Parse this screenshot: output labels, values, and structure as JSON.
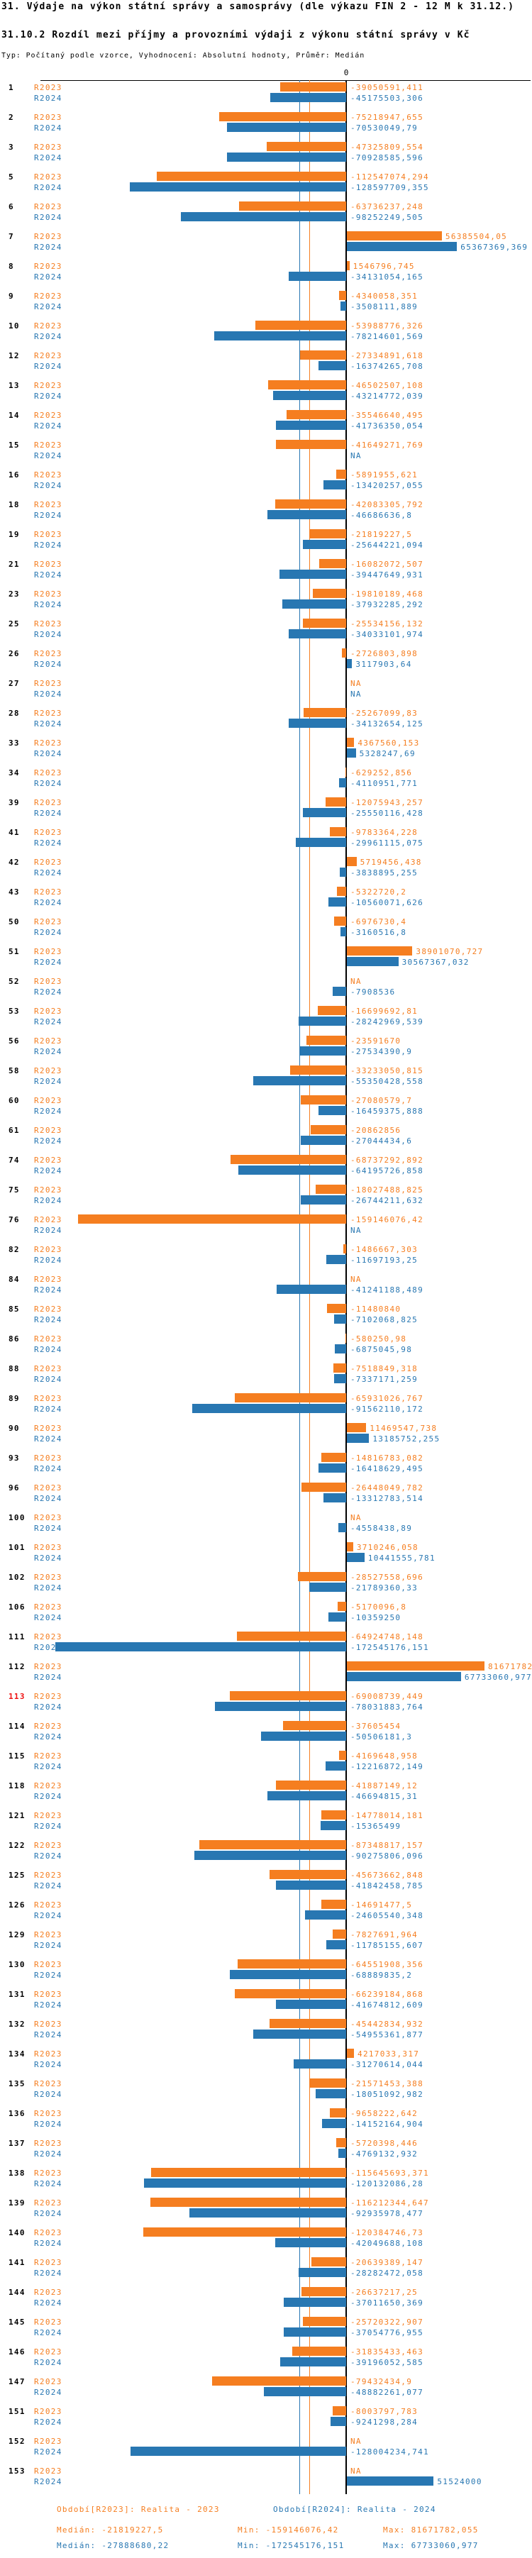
{
  "header": {
    "title": "31. Výdaje na výkon státní správy a samosprávy (dle výkazu FIN 2 - 12 M k 31.12.)",
    "subtitle": "31.10.2 Rozdíl mezi příjmy a provozními výdaji z výkonu státní správy v Kč",
    "meta": "Typ: Počítaný podle vzorce, Vyhodnocení: Absolutní hodnoty, Průměr: Medián"
  },
  "chart_data": {
    "type": "bar",
    "orientation": "horizontal-diverging",
    "zero_tick_label": "0",
    "na_label": "NA",
    "series_labels": {
      "s2023": "R2023",
      "s2024": "R2024"
    },
    "colors": {
      "r2023": "#f57e20",
      "r2024": "#2877b2",
      "highlight_id": "#ee1111",
      "axis": "#000000"
    },
    "highlighted_id": "113",
    "medians": {
      "r2023": -21819227.5,
      "r2024": -27888680.22
    },
    "axis_range": [
      -182000000,
      110000000
    ],
    "rows": [
      {
        "id": "1",
        "v2023": "-39050591,411",
        "v2024": "-45175503,306"
      },
      {
        "id": "2",
        "v2023": "-75218947,655",
        "v2024": "-70530049,79"
      },
      {
        "id": "3",
        "v2023": "-47325809,554",
        "v2024": "-70928585,596"
      },
      {
        "id": "5",
        "v2023": "-112547074,294",
        "v2024": "-128597709,355"
      },
      {
        "id": "6",
        "v2023": "-63736237,248",
        "v2024": "-98252249,505"
      },
      {
        "id": "7",
        "v2023": "56385504,05",
        "v2024": "65367369,369"
      },
      {
        "id": "8",
        "v2023": "1546796,745",
        "v2024": "-34131054,165"
      },
      {
        "id": "9",
        "v2023": "-4340058,351",
        "v2024": "-3508111,889"
      },
      {
        "id": "10",
        "v2023": "-53988776,326",
        "v2024": "-78214601,569"
      },
      {
        "id": "12",
        "v2023": "-27334891,618",
        "v2024": "-16374265,708"
      },
      {
        "id": "13",
        "v2023": "-46502507,108",
        "v2024": "-43214772,039"
      },
      {
        "id": "14",
        "v2023": "-35546640,495",
        "v2024": "-41736350,054"
      },
      {
        "id": "15",
        "v2023": "-41649271,769",
        "v2024": "NA"
      },
      {
        "id": "16",
        "v2023": "-5891955,621",
        "v2024": "-13420257,055"
      },
      {
        "id": "18",
        "v2023": "-42083305,792",
        "v2024": "-46686636,8"
      },
      {
        "id": "19",
        "v2023": "-21819227,5",
        "v2024": "-25644221,094"
      },
      {
        "id": "21",
        "v2023": "-16082072,507",
        "v2024": "-39447649,931"
      },
      {
        "id": "23",
        "v2023": "-19810189,468",
        "v2024": "-37932285,292"
      },
      {
        "id": "25",
        "v2023": "-25534156,132",
        "v2024": "-34033101,974"
      },
      {
        "id": "26",
        "v2023": "-2726803,898",
        "v2024": "3117903,64"
      },
      {
        "id": "27",
        "v2023": "NA",
        "v2024": "NA"
      },
      {
        "id": "28",
        "v2023": "-25267099,83",
        "v2024": "-34132654,125"
      },
      {
        "id": "33",
        "v2023": "4367560,153",
        "v2024": "5328247,69"
      },
      {
        "id": "34",
        "v2023": "-629252,856",
        "v2024": "-4110951,771"
      },
      {
        "id": "39",
        "v2023": "-12075943,257",
        "v2024": "-25550116,428"
      },
      {
        "id": "41",
        "v2023": "-9783364,228",
        "v2024": "-29961115,075"
      },
      {
        "id": "42",
        "v2023": "5719456,438",
        "v2024": "-3838895,255"
      },
      {
        "id": "43",
        "v2023": "-5322720,2",
        "v2024": "-10560071,626"
      },
      {
        "id": "50",
        "v2023": "-6976730,4",
        "v2024": "-3160516,8"
      },
      {
        "id": "51",
        "v2023": "38901070,727",
        "v2024": "30567367,032"
      },
      {
        "id": "52",
        "v2023": "NA",
        "v2024": "-7908536"
      },
      {
        "id": "53",
        "v2023": "-16699692,81",
        "v2024": "-28242969,539"
      },
      {
        "id": "56",
        "v2023": "-23591670",
        "v2024": "-27534390,9"
      },
      {
        "id": "58",
        "v2023": "-33233050,815",
        "v2024": "-55350428,558"
      },
      {
        "id": "60",
        "v2023": "-27080579,7",
        "v2024": "-16459375,888"
      },
      {
        "id": "61",
        "v2023": "-20862856",
        "v2024": "-27044434,6"
      },
      {
        "id": "74",
        "v2023": "-68737292,892",
        "v2024": "-64195726,858"
      },
      {
        "id": "75",
        "v2023": "-18027488,825",
        "v2024": "-26744211,632"
      },
      {
        "id": "76",
        "v2023": "-159146076,42",
        "v2024": "NA"
      },
      {
        "id": "82",
        "v2023": "-1486667,303",
        "v2024": "-11697193,25"
      },
      {
        "id": "84",
        "v2023": "NA",
        "v2024": "-41241188,489"
      },
      {
        "id": "85",
        "v2023": "-11480840",
        "v2024": "-7102068,825"
      },
      {
        "id": "86",
        "v2023": "-580250,98",
        "v2024": "-6875045,98"
      },
      {
        "id": "88",
        "v2023": "-7518849,318",
        "v2024": "-7337171,259"
      },
      {
        "id": "89",
        "v2023": "-65931026,767",
        "v2024": "-91562110,172"
      },
      {
        "id": "90",
        "v2023": "11469547,738",
        "v2024": "13185752,255"
      },
      {
        "id": "93",
        "v2023": "-14816783,082",
        "v2024": "-16418629,495"
      },
      {
        "id": "96",
        "v2023": "-26448049,782",
        "v2024": "-13312783,514"
      },
      {
        "id": "100",
        "v2023": "NA",
        "v2024": "-4558438,89"
      },
      {
        "id": "101",
        "v2023": "3710246,058",
        "v2024": "10441555,781"
      },
      {
        "id": "102",
        "v2023": "-28527558,696",
        "v2024": "-21789360,33"
      },
      {
        "id": "106",
        "v2023": "-5170096,8",
        "v2024": "-10359250"
      },
      {
        "id": "111",
        "v2023": "-64924748,148",
        "v2024": "-172545176,151"
      },
      {
        "id": "112",
        "v2023": "81671782,055",
        "v2024": "67733060,977"
      },
      {
        "id": "113",
        "v2023": "-69008739,449",
        "v2024": "-78031883,764"
      },
      {
        "id": "114",
        "v2023": "-37605454",
        "v2024": "-50506181,3"
      },
      {
        "id": "115",
        "v2023": "-4169648,958",
        "v2024": "-12216872,149"
      },
      {
        "id": "118",
        "v2023": "-41887149,12",
        "v2024": "-46694815,31"
      },
      {
        "id": "121",
        "v2023": "-14778014,181",
        "v2024": "-15365499"
      },
      {
        "id": "122",
        "v2023": "-87348817,157",
        "v2024": "-90275806,096"
      },
      {
        "id": "125",
        "v2023": "-45673662,848",
        "v2024": "-41842458,785"
      },
      {
        "id": "126",
        "v2023": "-14691477,5",
        "v2024": "-24605540,348"
      },
      {
        "id": "129",
        "v2023": "-7827691,964",
        "v2024": "-11785155,607"
      },
      {
        "id": "130",
        "v2023": "-64551908,356",
        "v2024": "-68889835,2"
      },
      {
        "id": "131",
        "v2023": "-66239184,868",
        "v2024": "-41674812,609"
      },
      {
        "id": "132",
        "v2023": "-45442834,932",
        "v2024": "-54955361,877"
      },
      {
        "id": "134",
        "v2023": "4217033,317",
        "v2024": "-31270614,044"
      },
      {
        "id": "135",
        "v2023": "-21571453,388",
        "v2024": "-18051092,982"
      },
      {
        "id": "136",
        "v2023": "-9658222,642",
        "v2024": "-14152164,904"
      },
      {
        "id": "137",
        "v2023": "-5720398,446",
        "v2024": "-4769132,932"
      },
      {
        "id": "138",
        "v2023": "-115645693,371",
        "v2024": "-120132086,28"
      },
      {
        "id": "139",
        "v2023": "-116212344,647",
        "v2024": "-92935978,477"
      },
      {
        "id": "140",
        "v2023": "-120384746,73",
        "v2024": "-42049688,108"
      },
      {
        "id": "141",
        "v2023": "-20639389,147",
        "v2024": "-28282472,058"
      },
      {
        "id": "144",
        "v2023": "-26637217,25",
        "v2024": "-37011650,369"
      },
      {
        "id": "145",
        "v2023": "-25720322,907",
        "v2024": "-37054776,955"
      },
      {
        "id": "146",
        "v2023": "-31835433,463",
        "v2024": "-39196052,585"
      },
      {
        "id": "147",
        "v2023": "-79432434,9",
        "v2024": "-48882261,077"
      },
      {
        "id": "151",
        "v2023": "-8003797,783",
        "v2024": "-9241298,284"
      },
      {
        "id": "152",
        "v2023": "NA",
        "v2024": "-128004234,741"
      },
      {
        "id": "153",
        "v2023": "NA",
        "v2024": "51524000"
      }
    ]
  },
  "legend": {
    "period_2023": "Období[R2023]: Realita - 2023",
    "period_2024": "Období[R2024]: Realita - 2024",
    "stats_2023": {
      "median": "Medián: -21819227,5",
      "min": "Min: -159146076,42",
      "max": "Max: 81671782,055"
    },
    "stats_2024": {
      "median": "Medián: -27888680,22",
      "min": "Min: -172545176,151",
      "max": "Max: 67733060,977"
    }
  }
}
